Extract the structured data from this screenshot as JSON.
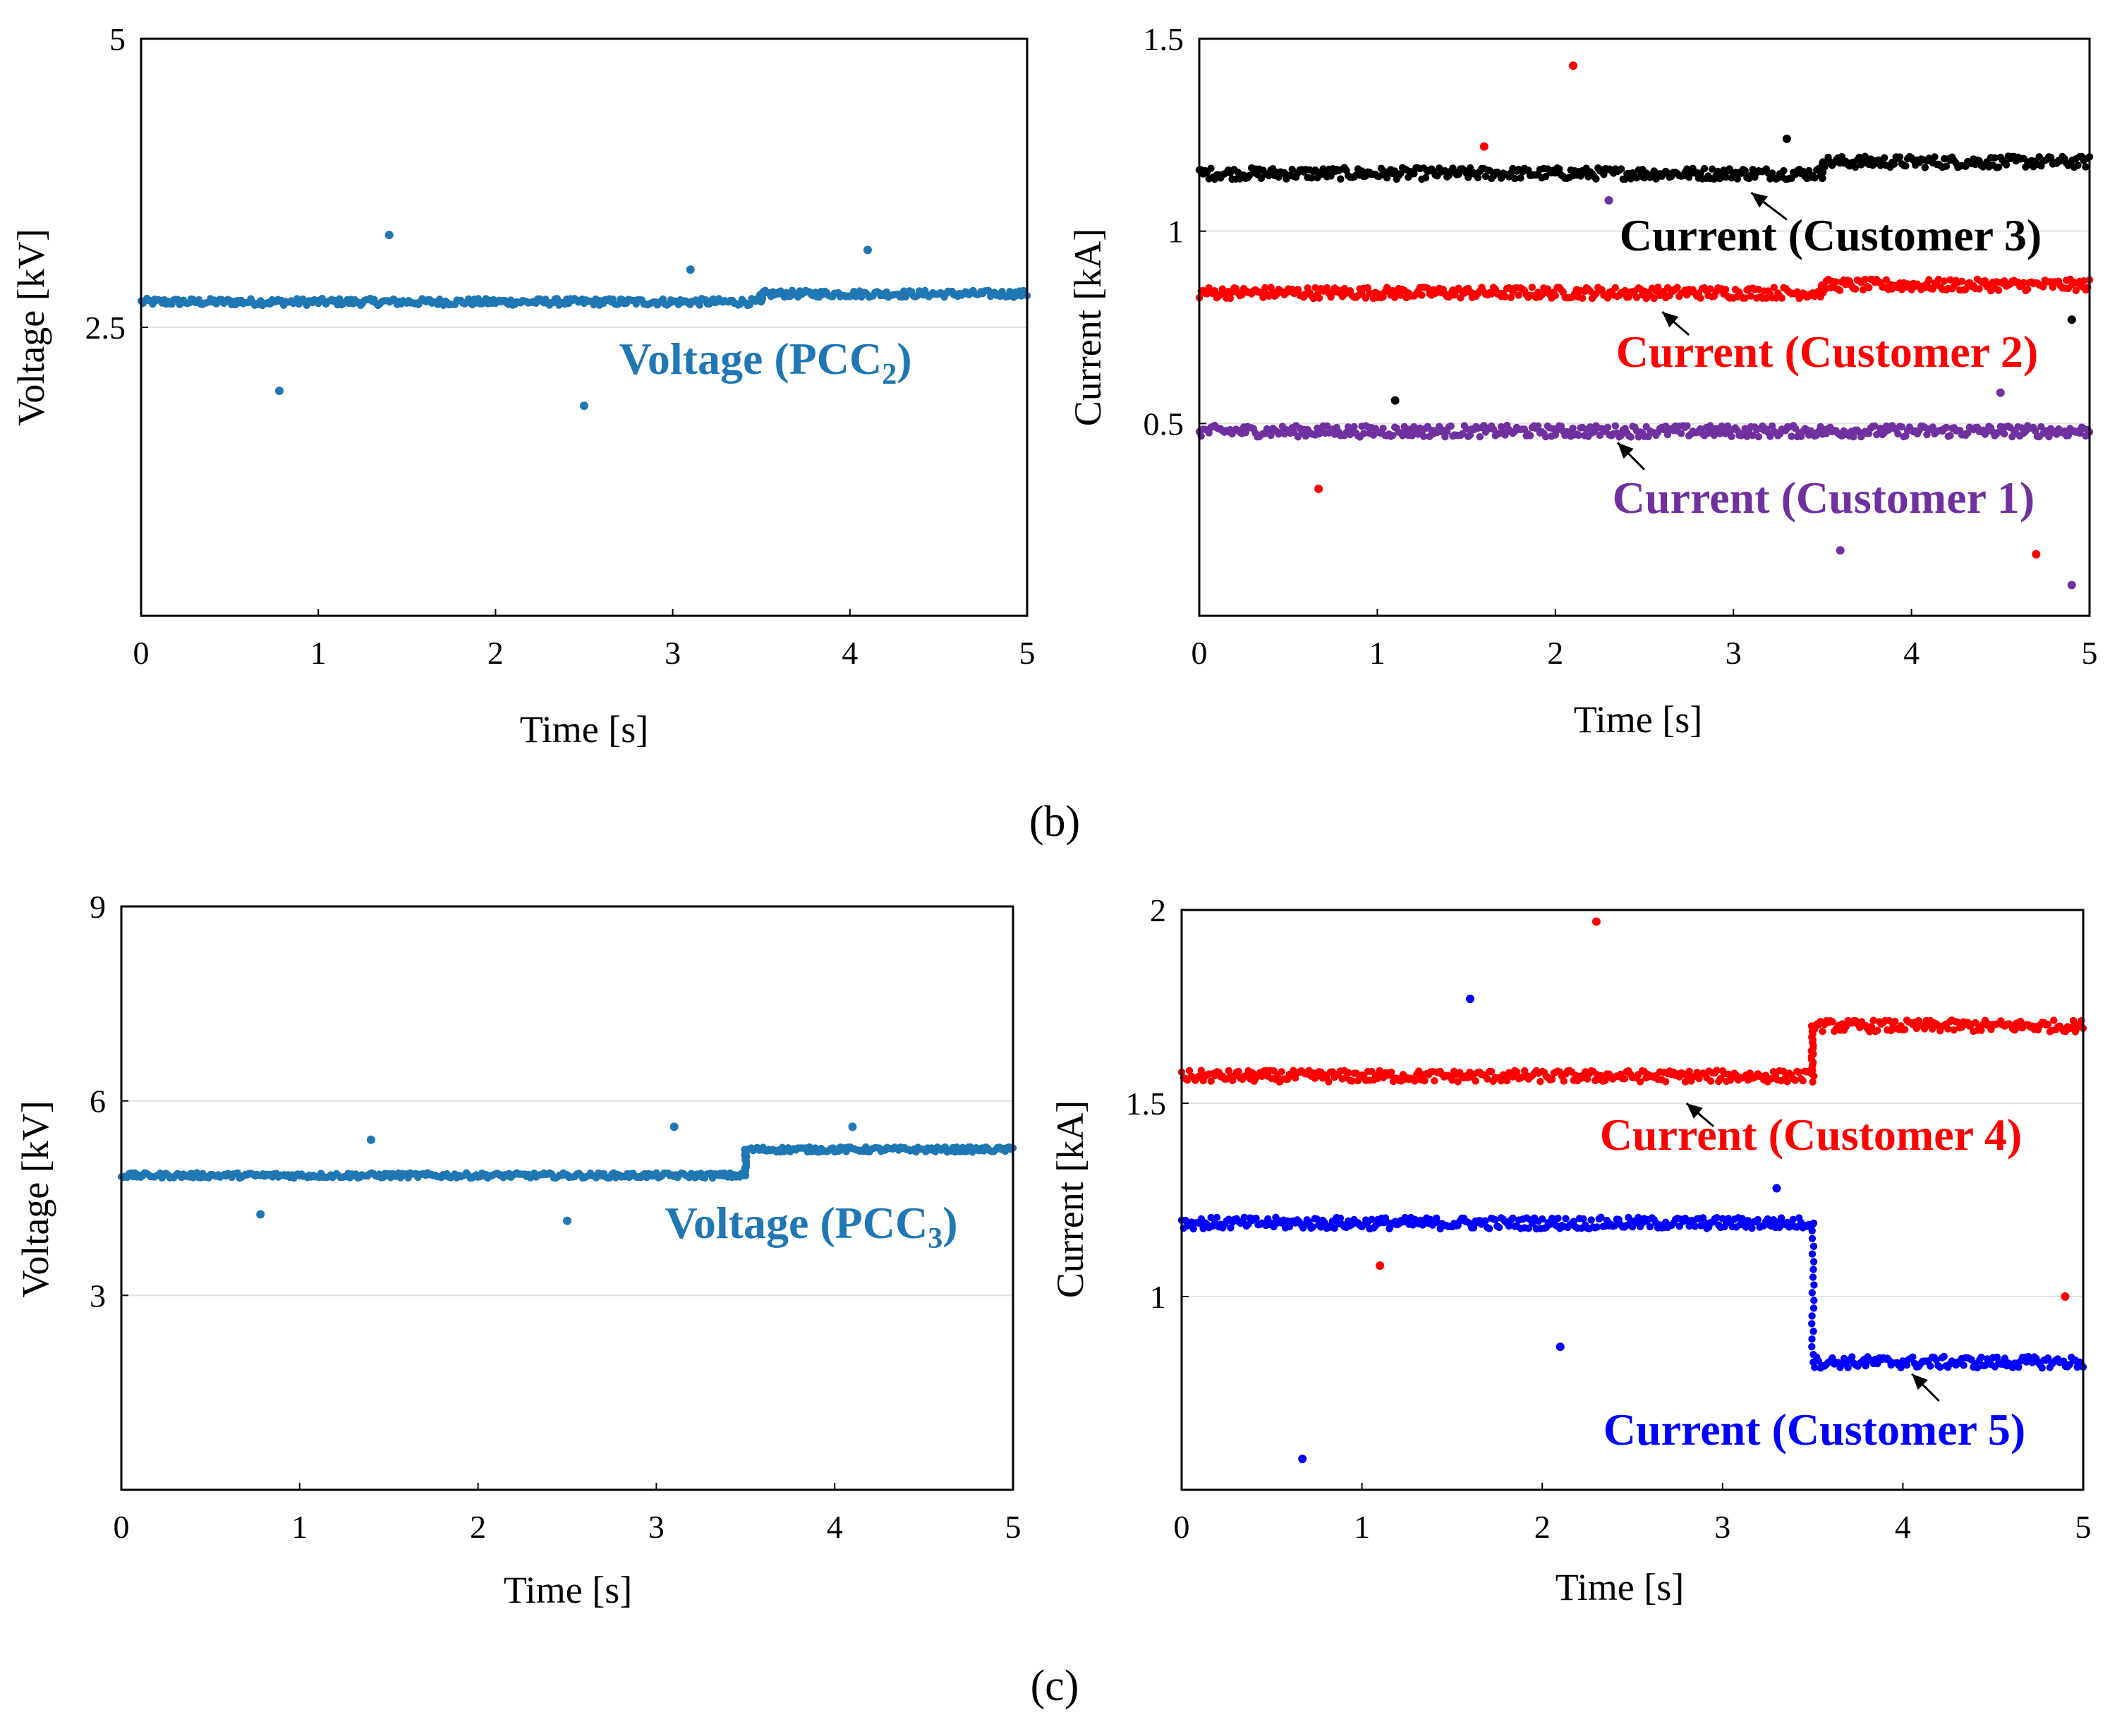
{
  "panel_labels": {
    "b": "(b)",
    "c": "(c)"
  },
  "chart_data": [
    {
      "id": "b_left",
      "type": "scatter",
      "xlabel": "Time [s]",
      "ylabel": "Voltage [kV]",
      "xlim": [
        0,
        5
      ],
      "ylim": [
        0,
        5
      ],
      "xticks": [
        "0",
        "1",
        "2",
        "3",
        "4",
        "5"
      ],
      "yticks": [
        "2.5",
        "5"
      ],
      "grid": "horizontal",
      "series": [
        {
          "name": "Voltage (PCC",
          "subscript": "2",
          "color": "#1f77b4",
          "segments": [
            {
              "from": 0,
              "to": 3.5,
              "value": 2.72
            },
            {
              "from": 3.5,
              "to": 5,
              "value": 2.79
            }
          ],
          "noise": 0.03,
          "outliers": [
            [
              0.78,
              1.95
            ],
            [
              1.4,
              3.3
            ],
            [
              2.5,
              1.82
            ],
            [
              3.1,
              3.0
            ],
            [
              4.1,
              3.17
            ]
          ]
        }
      ]
    },
    {
      "id": "b_right",
      "type": "scatter",
      "xlabel": "Time [s]",
      "ylabel": "Current [kA]",
      "xlim": [
        0,
        5
      ],
      "ylim": [
        0,
        1.5
      ],
      "xticks": [
        "0",
        "1",
        "2",
        "3",
        "4",
        "5"
      ],
      "yticks": [
        "0.5",
        "1",
        "1.5"
      ],
      "grid": "horizontal",
      "series": [
        {
          "name": "Current (Customer 3)",
          "color": "#000000",
          "segments": [
            {
              "from": 0,
              "to": 3.5,
              "value": 1.15
            },
            {
              "from": 3.5,
              "to": 5,
              "value": 1.18
            }
          ],
          "noise": 0.015,
          "arrow": {
            "from": [
              3.3,
              1.03
            ],
            "to": [
              3.1,
              1.1
            ]
          },
          "outliers": [
            [
              1.1,
              0.56
            ],
            [
              3.3,
              1.24
            ],
            [
              4.9,
              0.77
            ]
          ]
        },
        {
          "name": "Current (Customer 2)",
          "color": "#ff0000",
          "segments": [
            {
              "from": 0,
              "to": 3.5,
              "value": 0.84
            },
            {
              "from": 3.5,
              "to": 5,
              "value": 0.86
            }
          ],
          "noise": 0.015,
          "arrow": {
            "from": [
              2.75,
              0.73
            ],
            "to": [
              2.6,
              0.79
            ]
          },
          "outliers": [
            [
              0.67,
              0.33
            ],
            [
              1.6,
              1.22
            ],
            [
              2.1,
              1.43
            ],
            [
              4.7,
              0.16
            ]
          ]
        },
        {
          "name": "Current (Customer 1)",
          "color": "#7030a0",
          "segments": [
            {
              "from": 0,
              "to": 5,
              "value": 0.48
            }
          ],
          "noise": 0.015,
          "arrow": {
            "from": [
              2.5,
              0.38
            ],
            "to": [
              2.35,
              0.45
            ]
          },
          "outliers": [
            [
              2.3,
              1.08
            ],
            [
              3.6,
              0.17
            ],
            [
              4.5,
              0.58
            ],
            [
              4.9,
              0.08
            ]
          ]
        }
      ]
    },
    {
      "id": "c_left",
      "type": "scatter",
      "xlabel": "Time [s]",
      "ylabel": "Voltage [kV]",
      "xlim": [
        0,
        5
      ],
      "ylim": [
        0,
        9
      ],
      "xticks": [
        "0",
        "1",
        "2",
        "3",
        "4",
        "5"
      ],
      "yticks": [
        "3",
        "6",
        "9"
      ],
      "grid": "horizontal",
      "series": [
        {
          "name": "Voltage (PCC",
          "subscript": "3",
          "color": "#1f77b4",
          "segments": [
            {
              "from": 0,
              "to": 3.5,
              "value": 4.85
            },
            {
              "from": 3.5,
              "to": 5,
              "value": 5.25
            }
          ],
          "noise": 0.04,
          "outliers": [
            [
              0.78,
              4.25
            ],
            [
              1.4,
              5.4
            ],
            [
              2.5,
              4.15
            ],
            [
              3.1,
              5.6
            ],
            [
              4.1,
              5.6
            ]
          ]
        }
      ]
    },
    {
      "id": "c_right",
      "type": "scatter",
      "xlabel": "Time [s]",
      "ylabel": "Current [kA]",
      "xlim": [
        0,
        5
      ],
      "ylim": [
        0.5,
        2
      ],
      "xticks": [
        "0",
        "1",
        "2",
        "3",
        "4",
        "5"
      ],
      "yticks": [
        "1",
        "1.5",
        "2"
      ],
      "grid": "horizontal",
      "series": [
        {
          "name": "Current (Customer 4)",
          "color": "#ff0000",
          "segments": [
            {
              "from": 0,
              "to": 3.5,
              "value": 1.57
            },
            {
              "from": 3.5,
              "to": 5,
              "value": 1.7
            }
          ],
          "noise": 0.015,
          "arrow": {
            "from": [
              2.95,
              1.44
            ],
            "to": [
              2.8,
              1.5
            ]
          },
          "outliers": [
            [
              1.1,
              1.08
            ],
            [
              2.3,
              1.97
            ],
            [
              4.9,
              1.0
            ]
          ]
        },
        {
          "name": "Current (Customer 5)",
          "color": "#0000ff",
          "segments": [
            {
              "from": 0,
              "to": 3.5,
              "value": 1.19
            },
            {
              "from": 3.5,
              "to": 5,
              "value": 0.83
            }
          ],
          "noise": 0.015,
          "arrow": {
            "from": [
              4.2,
              0.73
            ],
            "to": [
              4.05,
              0.8
            ]
          },
          "outliers": [
            [
              0.67,
              0.58
            ],
            [
              1.6,
              1.77
            ],
            [
              2.1,
              0.87
            ],
            [
              3.3,
              1.28
            ]
          ]
        }
      ]
    }
  ]
}
